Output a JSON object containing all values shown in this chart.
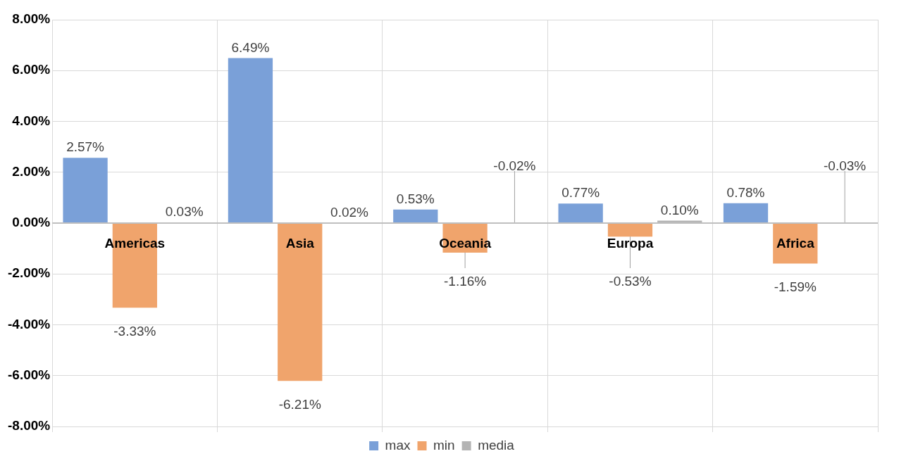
{
  "chart_data": {
    "type": "bar",
    "categories": [
      "Americas",
      "Asia",
      "Oceania",
      "Europa",
      "Africa"
    ],
    "series": [
      {
        "name": "max",
        "color": "#7aa0d8",
        "values": [
          2.57,
          6.49,
          0.53,
          0.77,
          0.78
        ],
        "value_labels": [
          "2.57%",
          "6.49%",
          "0.53%",
          "0.77%",
          "0.78%"
        ]
      },
      {
        "name": "min",
        "color": "#f0a46c",
        "values": [
          -3.33,
          -6.21,
          -1.16,
          -0.53,
          -1.59
        ],
        "value_labels": [
          "-3.33%",
          "-6.21%",
          "-1.16%",
          "-0.53%",
          "-1.59%"
        ]
      },
      {
        "name": "media",
        "color": "#b4b4b4",
        "values": [
          0.03,
          0.02,
          -0.02,
          0.1,
          -0.03
        ],
        "value_labels": [
          "0.03%",
          "0.02%",
          "-0.02%",
          "0.10%",
          "-0.03%"
        ]
      }
    ],
    "ylim": [
      -8,
      8
    ],
    "yticks": [
      {
        "value": -8,
        "label": "-8.00%"
      },
      {
        "value": -6,
        "label": "-6.00%"
      },
      {
        "value": -4,
        "label": "-4.00%"
      },
      {
        "value": -2,
        "label": "-2.00%"
      },
      {
        "value": 0,
        "label": "0.00%"
      },
      {
        "value": 2,
        "label": "2.00%"
      },
      {
        "value": 4,
        "label": "4.00%"
      },
      {
        "value": 6,
        "label": "6.00%"
      },
      {
        "value": 8,
        "label": "8.00%"
      }
    ],
    "grid": true,
    "legend": "bottom"
  }
}
